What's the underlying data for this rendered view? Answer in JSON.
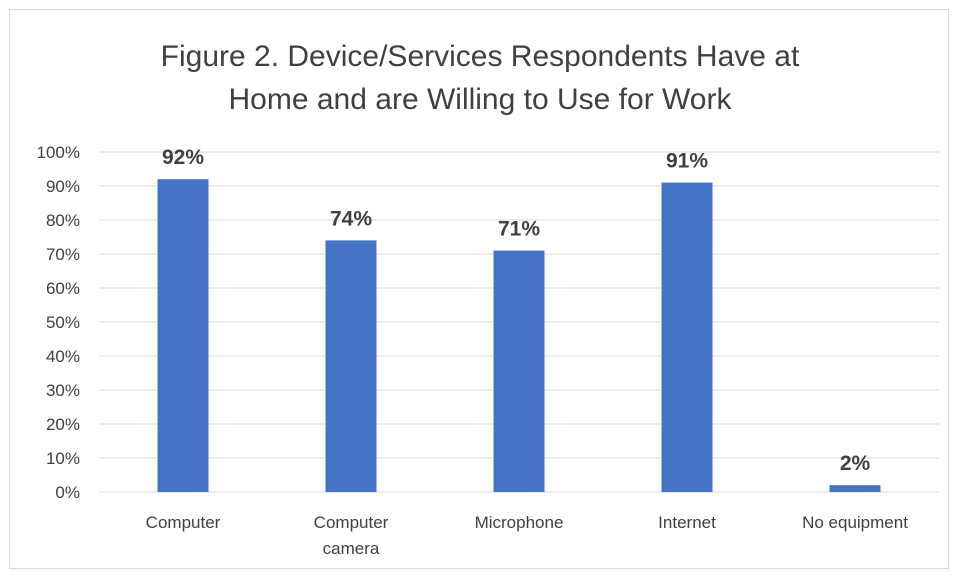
{
  "chart_data": {
    "type": "bar",
    "title": "Figure 2. Device/Services Respondents Have at Home and are Willing to Use for Work",
    "title_lines": [
      "Figure 2. Device/Services Respondents Have at",
      "Home and are Willing to Use for Work"
    ],
    "categories": [
      "Computer",
      "Computer camera",
      "Microphone",
      "Internet",
      "No equipment"
    ],
    "category_lines": [
      [
        "Computer"
      ],
      [
        "Computer",
        "camera"
      ],
      [
        "Microphone"
      ],
      [
        "Internet"
      ],
      [
        "No equipment"
      ]
    ],
    "values": [
      92,
      74,
      71,
      91,
      2
    ],
    "data_labels": [
      "92%",
      "74%",
      "71%",
      "91%",
      "2%"
    ],
    "ylim": [
      0,
      100
    ],
    "y_ticks": [
      "0%",
      "10%",
      "20%",
      "30%",
      "40%",
      "50%",
      "60%",
      "70%",
      "80%",
      "90%",
      "100%"
    ],
    "xlabel": "",
    "ylabel": "",
    "grid": true,
    "legend": "none",
    "bar_color": "#4472C4"
  }
}
